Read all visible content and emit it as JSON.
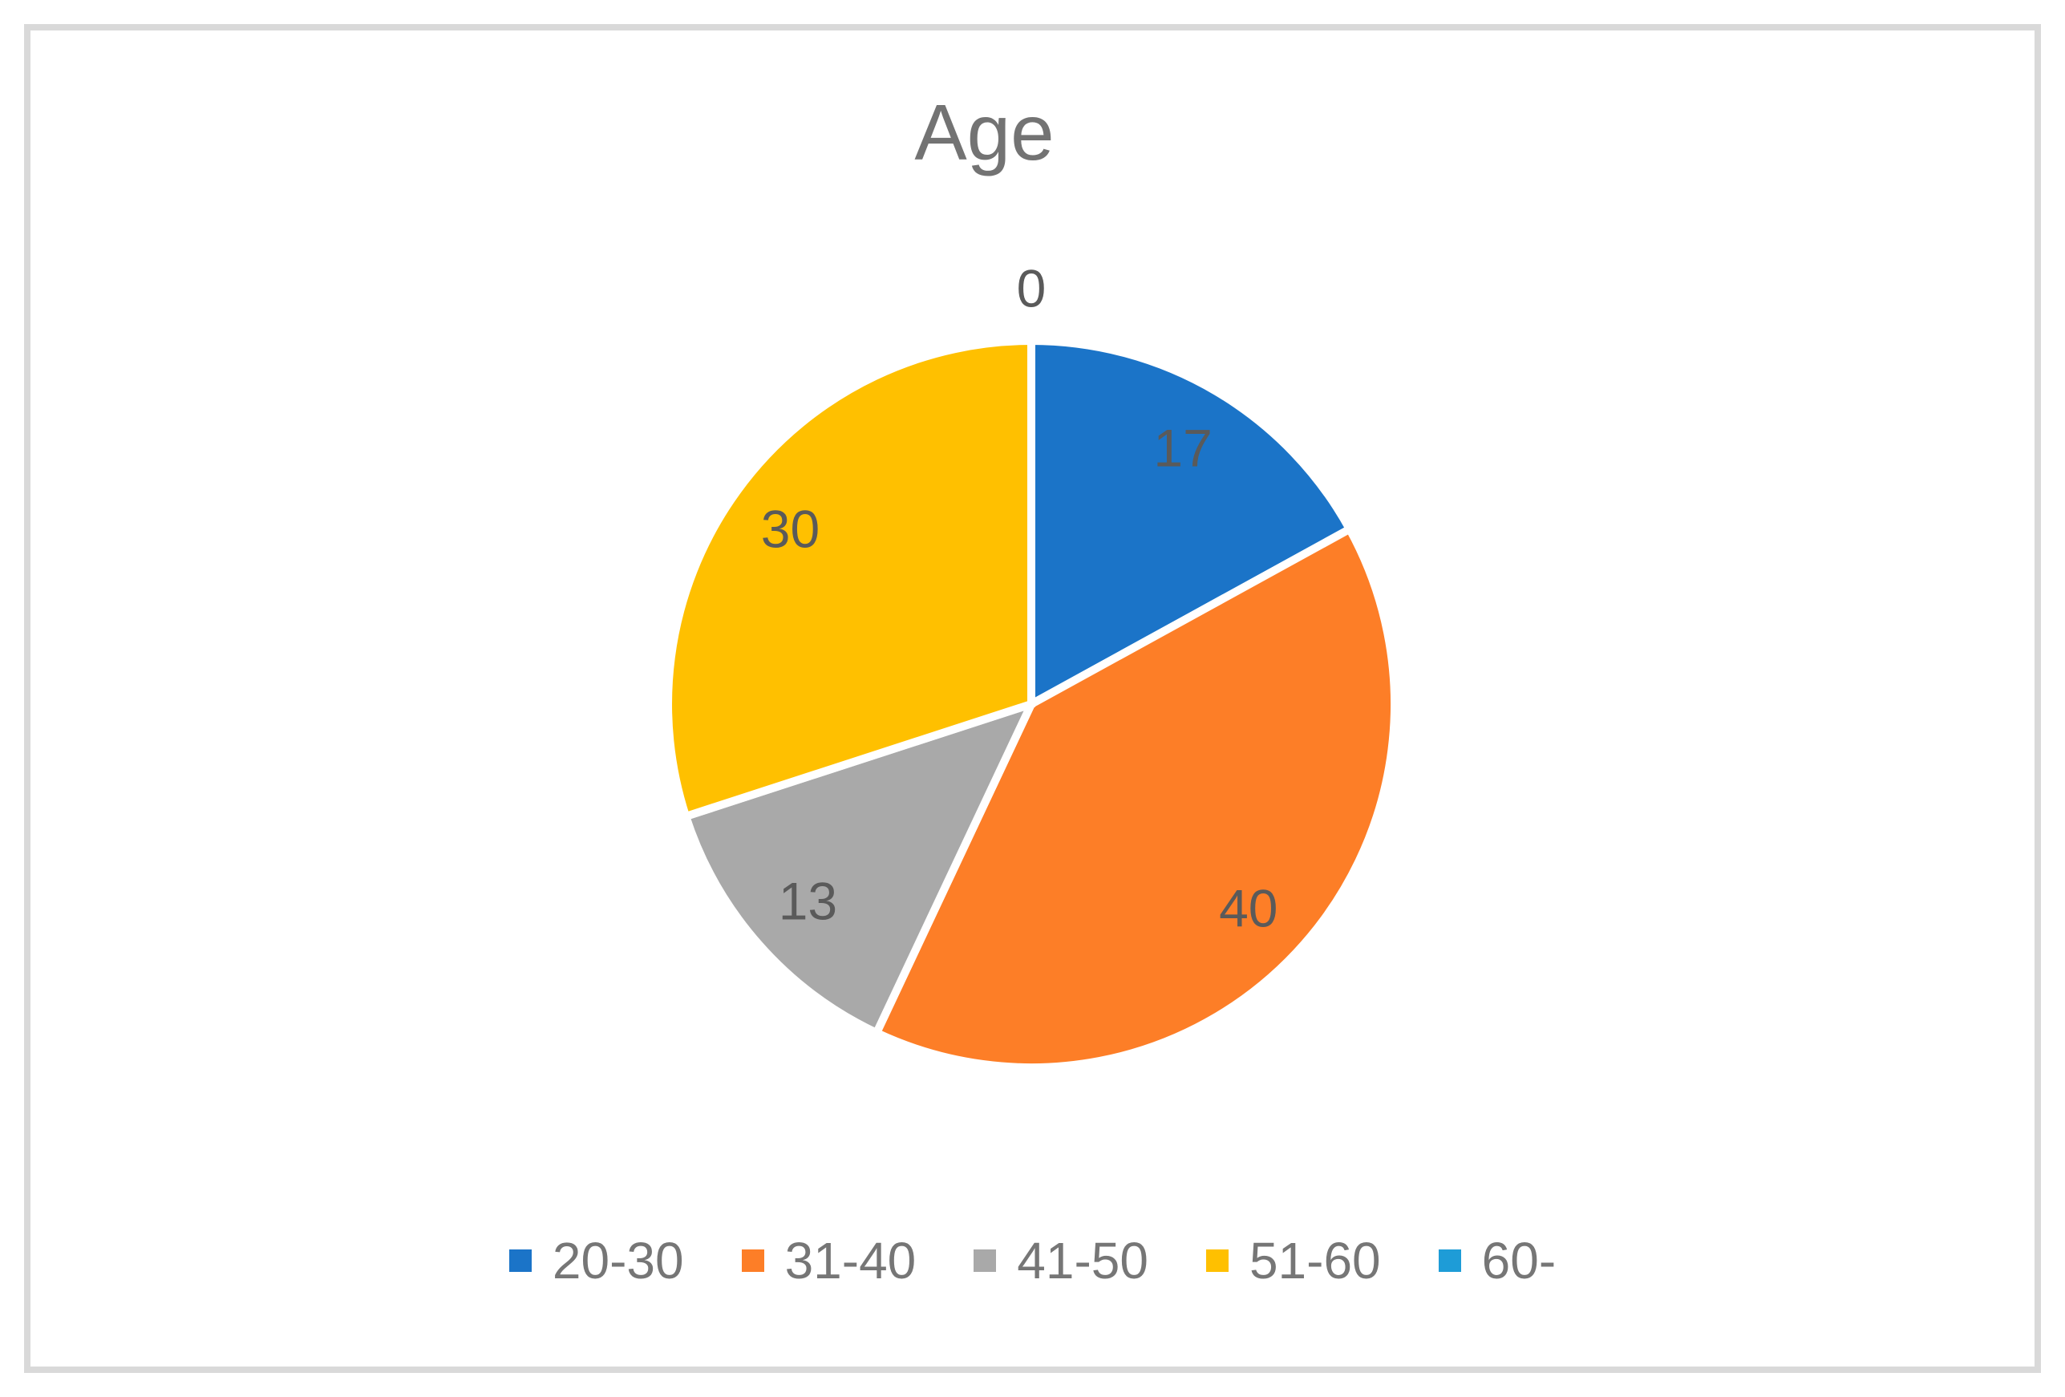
{
  "chart_data": {
    "type": "pie",
    "title": "Age",
    "slices": [
      {
        "label": "20-30",
        "value": 17,
        "color": "#1B74C8"
      },
      {
        "label": "31-40",
        "value": 40,
        "color": "#FD7E27"
      },
      {
        "label": "41-50",
        "value": 13,
        "color": "#A9A9A9"
      },
      {
        "label": "51-60",
        "value": 30,
        "color": "#FFC000"
      },
      {
        "label": "60-",
        "value": 0,
        "color": "#1E9CD7"
      }
    ],
    "total": 100,
    "start_angle_deg": 0,
    "direction": "clockwise",
    "data_labels": [
      "17",
      "40",
      "13",
      "30",
      "0"
    ],
    "data_labels_shown": true,
    "legend_position": "bottom",
    "legend_entries": [
      "20-30",
      "31-40",
      "41-50",
      "51-60",
      "60-"
    ]
  },
  "colors": {
    "background": "#FFFFFF",
    "frame_border": "#D9D9D9",
    "title_text": "#737373",
    "data_label_text": "#5A5A5A",
    "legend_text": "#767676",
    "slice_separator": "#FFFFFF"
  }
}
